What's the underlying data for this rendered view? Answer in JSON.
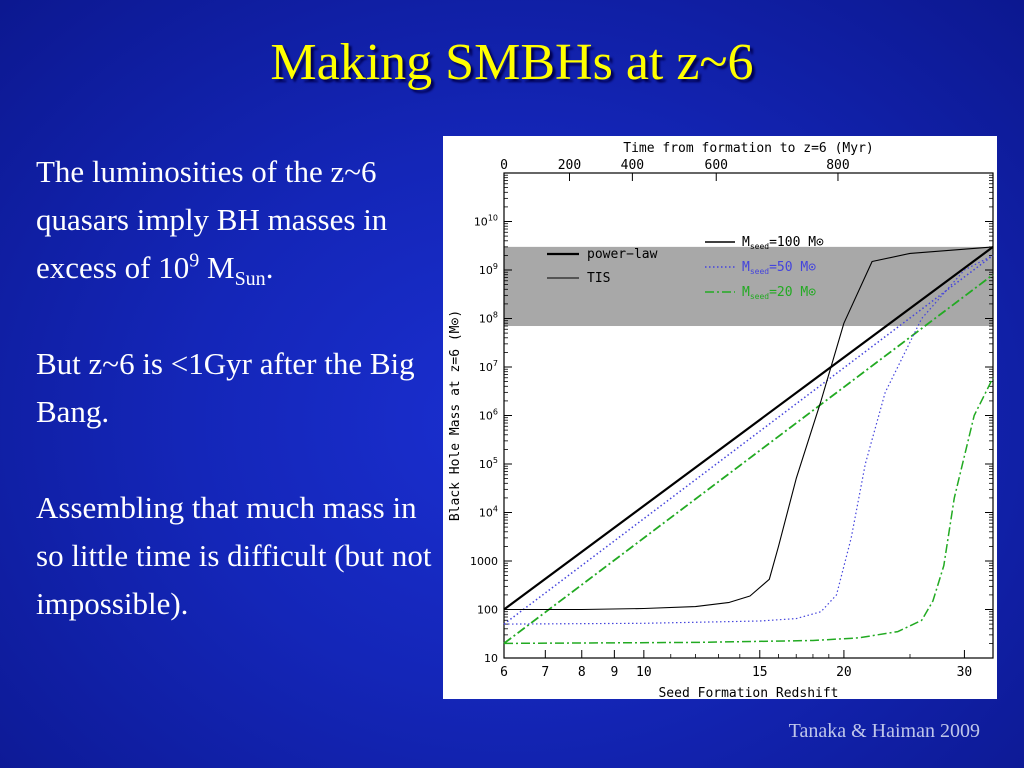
{
  "slide": {
    "title": "Making SMBHs at z~6",
    "citation": "Tanaka & Haiman 2009",
    "p1_before_exp": "The luminosities of the z~6 quasars imply BH masses in excess of 10",
    "p1_exp": "9",
    "p1_unit": "M",
    "p1_unit_sub": "Sun",
    "p1_end": ".",
    "p2": "But z~6 is <1Gyr after the Big Bang.",
    "p3": "Assembling that much mass in so little time is difficult (but not impossible)."
  },
  "chart_data": {
    "type": "line",
    "xlabel": "Seed Formation Redshift",
    "ylabel": "Black Hole Mass at z=6 (M⊙)",
    "top_xlabel": "Time from formation to z=6 (Myr)",
    "x_scale": "log(1+z)",
    "y_scale": "log",
    "xlim": [
      6,
      33
    ],
    "ylim": [
      10,
      100000000000
    ],
    "x_ticks": [
      6,
      7,
      8,
      9,
      10,
      15,
      20,
      30
    ],
    "top_ticks": [
      {
        "label": "0",
        "z": 6
      },
      {
        "label": "200",
        "z": 7.65
      },
      {
        "label": "400",
        "z": 9.6
      },
      {
        "label": "600",
        "z": 12.9
      },
      {
        "label": "800",
        "z": 19.6
      }
    ],
    "y_ticks": [
      {
        "label": "10",
        "v": 10
      },
      {
        "label": "100",
        "v": 100
      },
      {
        "label": "1000",
        "v": 1000
      },
      {
        "label": "10",
        "exp": "4",
        "v": 10000
      },
      {
        "label": "10",
        "exp": "5",
        "v": 100000
      },
      {
        "label": "10",
        "exp": "6",
        "v": 1000000
      },
      {
        "label": "10",
        "exp": "7",
        "v": 10000000
      },
      {
        "label": "10",
        "exp": "8",
        "v": 100000000
      },
      {
        "label": "10",
        "exp": "9",
        "v": 1000000000
      },
      {
        "label": "10",
        "exp": "10",
        "v": 10000000000
      }
    ],
    "shaded_band": {
      "y_from": 70000000,
      "y_to": 3000000000,
      "color": "#999999"
    },
    "legend_style": [
      {
        "label": "power−law",
        "stroke": "#000000",
        "width": 2.2,
        "dash": ""
      },
      {
        "label": "TIS",
        "stroke": "#000000",
        "width": 1.1,
        "dash": ""
      }
    ],
    "legend_seed": [
      {
        "prefix": "M",
        "sub": "seed",
        "value": "=100 M⊙",
        "color": "#000000",
        "dash": ""
      },
      {
        "prefix": "M",
        "sub": "seed",
        "value": "=50  M⊙",
        "color": "#4444dd",
        "dash": "1.5,2.5"
      },
      {
        "prefix": "M",
        "sub": "seed",
        "value": "=20  M⊙",
        "color": "#22aa22",
        "dash": "9,3,2,3"
      }
    ],
    "series": [
      {
        "kind": "power-law",
        "color": "#000000",
        "dash": "",
        "width": 2.2,
        "points": [
          [
            6,
            100
          ],
          [
            33,
            3000000000
          ]
        ]
      },
      {
        "kind": "power-law",
        "color": "#4444dd",
        "dash": "1.5,2.5",
        "width": 1.5,
        "points": [
          [
            6,
            50
          ],
          [
            33,
            2000000000
          ]
        ]
      },
      {
        "kind": "power-law",
        "color": "#22aa22",
        "dash": "9,3,2,3",
        "width": 1.8,
        "points": [
          [
            6,
            20
          ],
          [
            33,
            800000000
          ]
        ]
      },
      {
        "kind": "TIS",
        "color": "#000000",
        "dash": "",
        "width": 1.1,
        "points": [
          [
            6,
            100
          ],
          [
            8,
            100
          ],
          [
            10,
            105
          ],
          [
            12,
            115
          ],
          [
            13.5,
            140
          ],
          [
            14.5,
            190
          ],
          [
            15.5,
            420
          ],
          [
            16,
            2000
          ],
          [
            17,
            50000
          ],
          [
            18.5,
            2000000
          ],
          [
            20,
            80000000
          ],
          [
            22,
            1500000000
          ],
          [
            25,
            2200000000
          ],
          [
            33,
            3000000000
          ]
        ]
      },
      {
        "kind": "TIS",
        "color": "#4444dd",
        "dash": "1.5,2.5",
        "width": 1.2,
        "points": [
          [
            6,
            50
          ],
          [
            10,
            52
          ],
          [
            15,
            58
          ],
          [
            17,
            65
          ],
          [
            18.5,
            90
          ],
          [
            19.5,
            200
          ],
          [
            20.5,
            3000
          ],
          [
            21.5,
            100000
          ],
          [
            23,
            3000000
          ],
          [
            26,
            100000000
          ],
          [
            30,
            1000000000
          ],
          [
            33,
            2000000000
          ]
        ]
      },
      {
        "kind": "TIS",
        "color": "#22aa22",
        "dash": "9,3,2,3",
        "width": 1.5,
        "points": [
          [
            6,
            20
          ],
          [
            12,
            21
          ],
          [
            18,
            23
          ],
          [
            21,
            26
          ],
          [
            24,
            35
          ],
          [
            26,
            60
          ],
          [
            27,
            150
          ],
          [
            28,
            800
          ],
          [
            29,
            20000
          ],
          [
            31,
            1000000
          ],
          [
            33,
            6000000
          ]
        ]
      }
    ]
  }
}
